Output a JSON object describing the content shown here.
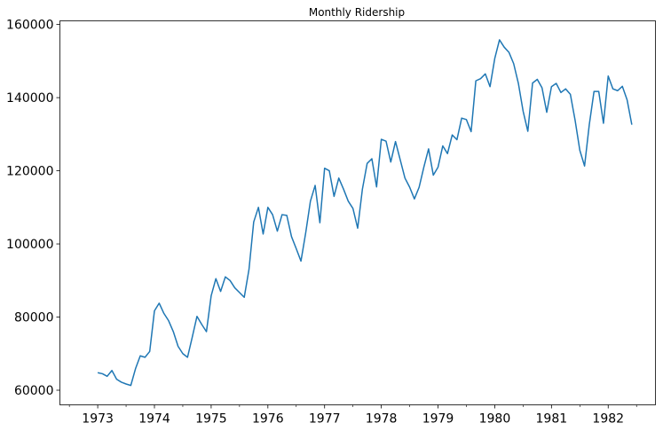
{
  "chart_data": {
    "type": "line",
    "title": "Monthly Ridership",
    "xlabel": "",
    "ylabel": "",
    "x_start": "1973-01",
    "x_end": "1982-06",
    "xlim": [
      "1972-05",
      "1982-11"
    ],
    "ylim": [
      56000,
      161000
    ],
    "x_ticks": [
      "1973",
      "1974",
      "1975",
      "1976",
      "1977",
      "1978",
      "1979",
      "1980",
      "1981",
      "1982"
    ],
    "y_ticks": [
      "60000",
      "80000",
      "100000",
      "120000",
      "140000",
      "160000"
    ],
    "grid": false,
    "legend": "none",
    "line_color": "#1f77b4",
    "series": [
      {
        "values": [
          64800,
          64500,
          63800,
          65400,
          63000,
          62200,
          61700,
          61300,
          65900,
          69400,
          69000,
          70600,
          81700,
          83800,
          81000,
          79000,
          76000,
          72000,
          70000,
          69000,
          74500,
          80200,
          78000,
          76000,
          85800,
          90500,
          87000,
          91000,
          90000,
          88000,
          86700,
          85400,
          93000,
          106000,
          110000,
          102700,
          110000,
          108000,
          103500,
          108000,
          107800,
          102000,
          98700,
          95300,
          103000,
          111700,
          116000,
          105800,
          120700,
          120000,
          113000,
          118000,
          115000,
          111700,
          109700,
          104300,
          115000,
          122000,
          123300,
          115600,
          128600,
          128100,
          122400,
          128000,
          123000,
          118000,
          115500,
          112300,
          115500,
          121000,
          126000,
          118800,
          121000,
          126800,
          124700,
          129800,
          128500,
          134400,
          134000,
          130700,
          144600,
          145200,
          146500,
          143000,
          150700,
          155800,
          153800,
          152400,
          149300,
          143900,
          136300,
          130800,
          144000,
          145000,
          142700,
          136000,
          143000,
          143900,
          141400,
          142400,
          140900,
          133800,
          125600,
          121300,
          132600,
          141700,
          141700,
          133000,
          145900,
          142400,
          141900,
          143100,
          139400,
          132600
        ]
      }
    ]
  }
}
